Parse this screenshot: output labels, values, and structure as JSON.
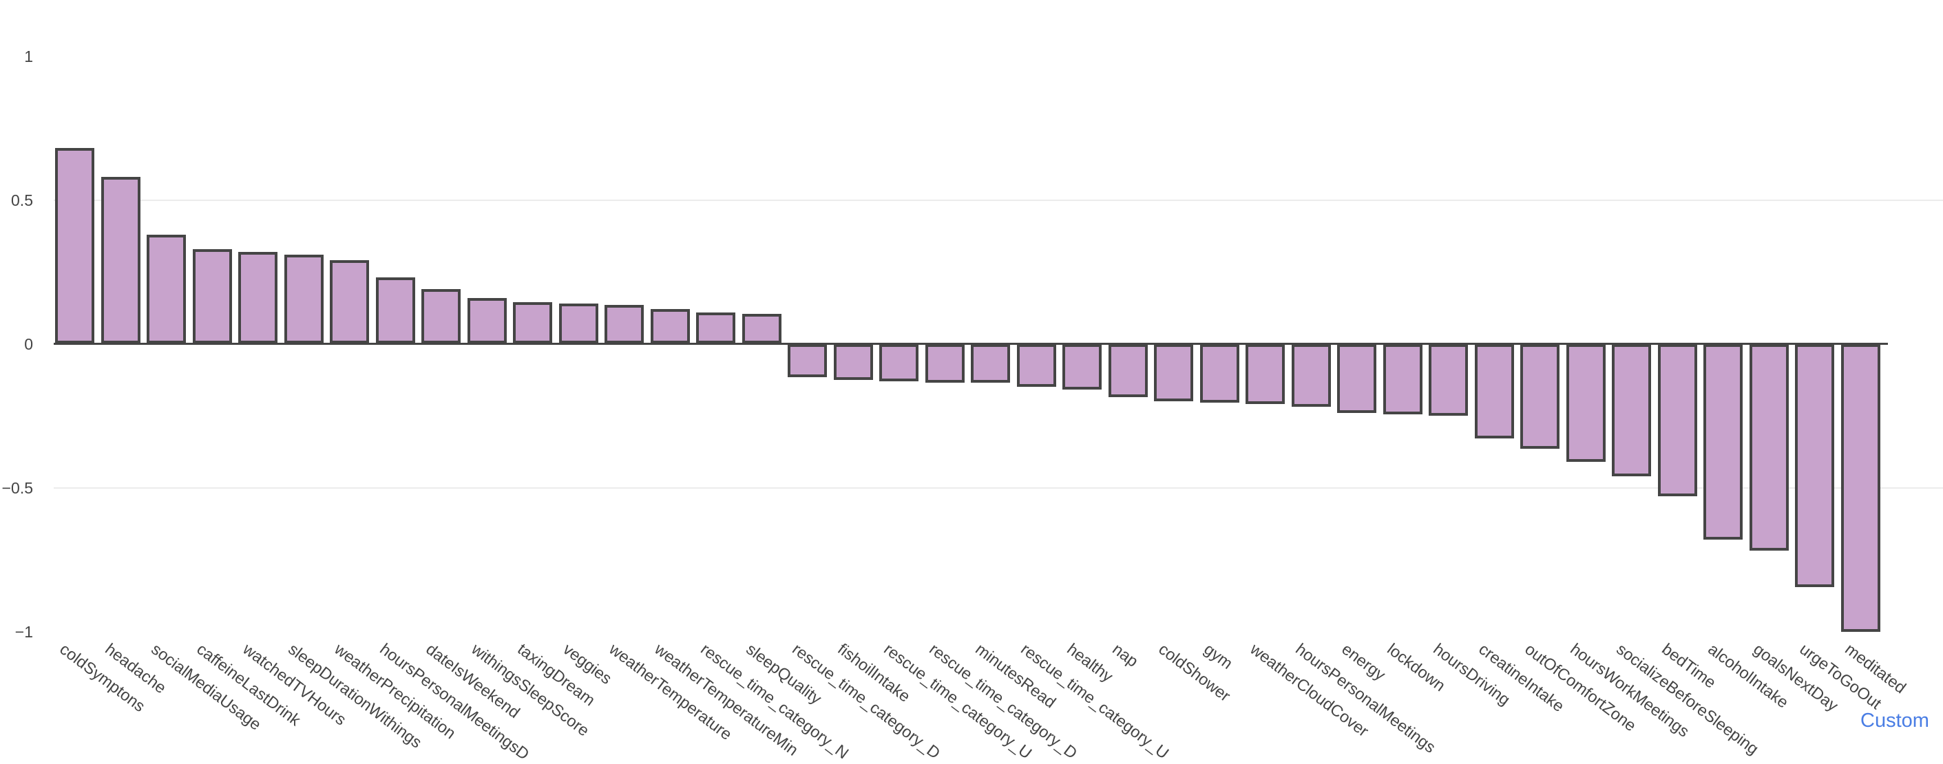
{
  "chart_data": {
    "type": "bar",
    "title": "",
    "xlabel": "",
    "ylabel": "",
    "orientation": "vertical",
    "grid": "horizontal gridlines at 0.5 and -0.5 only",
    "legend": "none",
    "ylim": [
      -1,
      1
    ],
    "yticks": [
      1,
      0.5,
      0,
      -0.5,
      -1
    ],
    "ytick_labels": [
      "1",
      "0.5",
      "0",
      "−0.5",
      "−1"
    ],
    "tick_angle_deg": 37,
    "bar_fill_color": "#c8a3cc",
    "bar_border_color": "#454545",
    "axis_line_color": "#444444",
    "gridline_color": "#ececec",
    "tick_text_color": "#444444",
    "categories": [
      "coldSymptons",
      "headache",
      "socialMediaUsage",
      "caffeineLastDrink",
      "watchedTVHours",
      "sleepDurationWithings",
      "weatherPrecipitation",
      "hoursPersonalMeetingsD",
      "dateIsWeekend",
      "withingsSleepScore",
      "taxingDream",
      "veggies",
      "weatherTemperature",
      "weatherTemperatureMin",
      "rescue_time_category_N",
      "sleepQuality",
      "rescue_time_category_D",
      "fishoilIntake",
      "rescue_time_category_U",
      "rescue_time_category_D",
      "minutesRead",
      "rescue_time_category_U",
      "healthy",
      "nap",
      "coldShower",
      "gym",
      "weatherCloudCover",
      "hoursPersonalMeetings",
      "energy",
      "lockdown",
      "hoursDriving",
      "creatineIntake",
      "outOfComfortZone",
      "hoursWorkMeetings",
      "socializeBeforeSleeping",
      "bedTime",
      "alcoholIntake",
      "goalsNextDay",
      "urgeToGoOut",
      "meditated"
    ],
    "values": [
      0.68,
      0.58,
      0.38,
      0.33,
      0.32,
      0.31,
      0.29,
      0.23,
      0.19,
      0.16,
      0.145,
      0.14,
      0.135,
      0.12,
      0.11,
      0.105,
      -0.115,
      -0.125,
      -0.13,
      -0.135,
      -0.135,
      -0.15,
      -0.16,
      -0.185,
      -0.2,
      -0.205,
      -0.21,
      -0.22,
      -0.24,
      -0.245,
      -0.25,
      -0.33,
      -0.365,
      -0.41,
      -0.46,
      -0.53,
      -0.68,
      -0.72,
      -0.845,
      -1.0
    ]
  },
  "footer": {
    "custom_link": "Custom",
    "custom_link_color": "#497de4"
  }
}
